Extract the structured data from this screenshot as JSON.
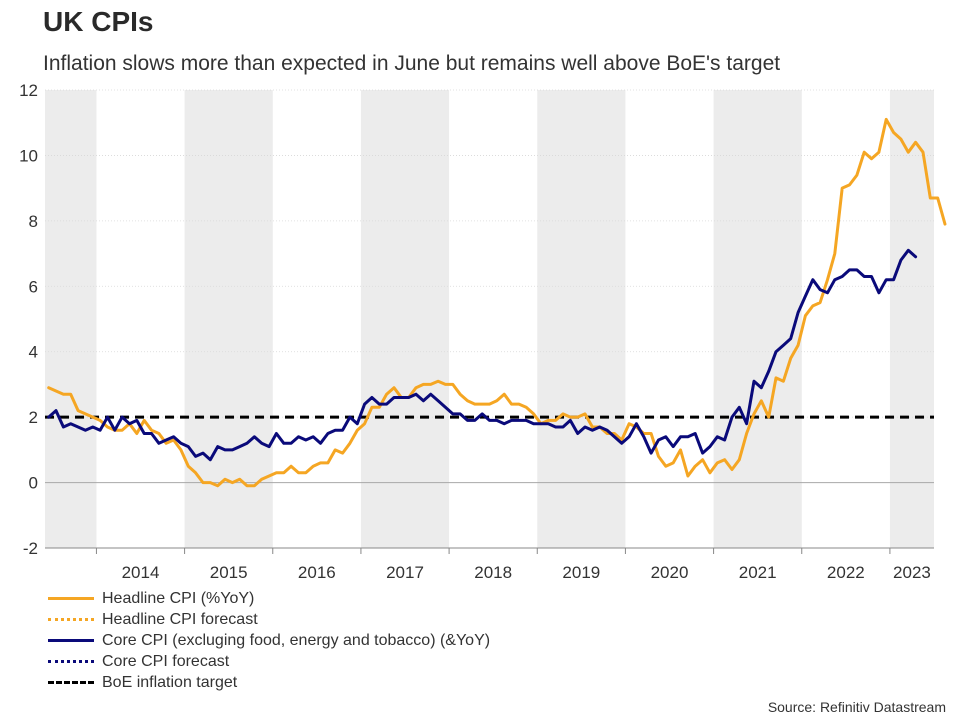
{
  "title": "UK CPIs",
  "subtitle": "Inflation slows more than expected in June but remains well above BoE's target",
  "source": "Source: Refinitiv Datastream",
  "colors": {
    "headline": "#f5a623",
    "core": "#0a0a7a",
    "target": "#000000",
    "band": "#ececec",
    "grid": "#d8d8d8"
  },
  "legend": [
    {
      "label": "Headline CPI (%YoY)",
      "color": "#f5a623",
      "style": "solid"
    },
    {
      "label": "Headline CPI forecast",
      "color": "#f5a623",
      "style": "dotted"
    },
    {
      "label": "Core CPI (excluging food, energy and tobacco) (&YoY)",
      "color": "#0a0a7a",
      "style": "solid"
    },
    {
      "label": "Core CPI forecast",
      "color": "#0a0a7a",
      "style": "dotted"
    },
    {
      "label": "BoE inflation target",
      "color": "#000000",
      "style": "dashed"
    }
  ],
  "chart_data": {
    "type": "line",
    "title": "UK CPIs",
    "subtitle": "Inflation slows more than expected in June but remains well above BoE's target",
    "x_start": "2013-06",
    "x_end": "2023-06",
    "x_tick_labels": [
      "2014",
      "2015",
      "2016",
      "2017",
      "2018",
      "2019",
      "2020",
      "2021",
      "2022",
      "2023"
    ],
    "ylim": [
      -2,
      12
    ],
    "y_ticks": [
      -2,
      0,
      2,
      4,
      6,
      8,
      10,
      12
    ],
    "grid": true,
    "shaded_years": [
      2013,
      2015,
      2017,
      2019,
      2021,
      2023
    ],
    "series": [
      {
        "name": "Headline CPI (%YoY)",
        "values": [
          2.9,
          2.8,
          2.7,
          2.7,
          2.2,
          2.1,
          2.0,
          1.9,
          1.7,
          1.6,
          1.6,
          1.8,
          1.5,
          1.9,
          1.6,
          1.5,
          1.2,
          1.3,
          1.0,
          0.5,
          0.3,
          0.0,
          0.0,
          -0.1,
          0.1,
          0.0,
          0.1,
          -0.1,
          -0.1,
          0.1,
          0.2,
          0.3,
          0.3,
          0.5,
          0.3,
          0.3,
          0.5,
          0.6,
          0.6,
          1.0,
          0.9,
          1.2,
          1.6,
          1.8,
          2.3,
          2.3,
          2.7,
          2.9,
          2.6,
          2.6,
          2.9,
          3.0,
          3.0,
          3.1,
          3.0,
          3.0,
          2.7,
          2.5,
          2.4,
          2.4,
          2.4,
          2.5,
          2.7,
          2.4,
          2.4,
          2.3,
          2.1,
          1.8,
          1.9,
          1.9,
          2.1,
          2.0,
          2.0,
          2.1,
          1.7,
          1.7,
          1.5,
          1.5,
          1.3,
          1.8,
          1.7,
          1.5,
          1.5,
          0.8,
          0.5,
          0.6,
          1.0,
          0.2,
          0.5,
          0.7,
          0.3,
          0.6,
          0.7,
          0.4,
          0.7,
          1.5,
          2.1,
          2.5,
          2.0,
          3.2,
          3.1,
          3.8,
          4.2,
          5.1,
          5.4,
          5.5,
          6.2,
          7.0,
          9.0,
          9.1,
          9.4,
          10.1,
          9.9,
          10.1,
          11.1,
          10.7,
          10.5,
          10.1,
          10.4,
          10.1,
          8.7,
          8.7,
          7.9
        ],
        "color": "#f5a623"
      },
      {
        "name": "Core CPI (excluging food, energy and tobacco) (&YoY)",
        "values": [
          2.0,
          2.2,
          1.7,
          1.8,
          1.7,
          1.6,
          1.7,
          1.6,
          2.0,
          1.6,
          2.0,
          1.8,
          1.9,
          1.5,
          1.5,
          1.2,
          1.3,
          1.4,
          1.2,
          1.1,
          0.8,
          0.9,
          0.7,
          1.1,
          1.0,
          1.0,
          1.1,
          1.2,
          1.4,
          1.2,
          1.1,
          1.5,
          1.2,
          1.2,
          1.4,
          1.3,
          1.4,
          1.2,
          1.5,
          1.6,
          1.6,
          2.0,
          1.8,
          2.4,
          2.6,
          2.4,
          2.4,
          2.6,
          2.6,
          2.6,
          2.7,
          2.5,
          2.7,
          2.5,
          2.3,
          2.1,
          2.1,
          1.9,
          1.9,
          2.1,
          1.9,
          1.9,
          1.8,
          1.9,
          1.9,
          1.9,
          1.8,
          1.8,
          1.8,
          1.7,
          1.7,
          1.9,
          1.5,
          1.7,
          1.6,
          1.7,
          1.6,
          1.4,
          1.2,
          1.4,
          1.8,
          1.4,
          0.9,
          1.3,
          1.4,
          1.1,
          1.4,
          1.4,
          1.5,
          0.9,
          1.1,
          1.4,
          1.3,
          2.0,
          2.3,
          1.8,
          3.1,
          2.9,
          3.4,
          4.0,
          4.2,
          4.4,
          5.2,
          5.7,
          6.2,
          5.9,
          5.8,
          6.2,
          6.3,
          6.5,
          6.5,
          6.3,
          6.3,
          5.8,
          6.2,
          6.2,
          6.8,
          7.1,
          6.9
        ],
        "color": "#0a0a7a"
      },
      {
        "name": "BoE inflation target",
        "values": [
          2.0
        ],
        "constant": true,
        "color": "#000000"
      }
    ],
    "ylabel": "",
    "xlabel": ""
  }
}
